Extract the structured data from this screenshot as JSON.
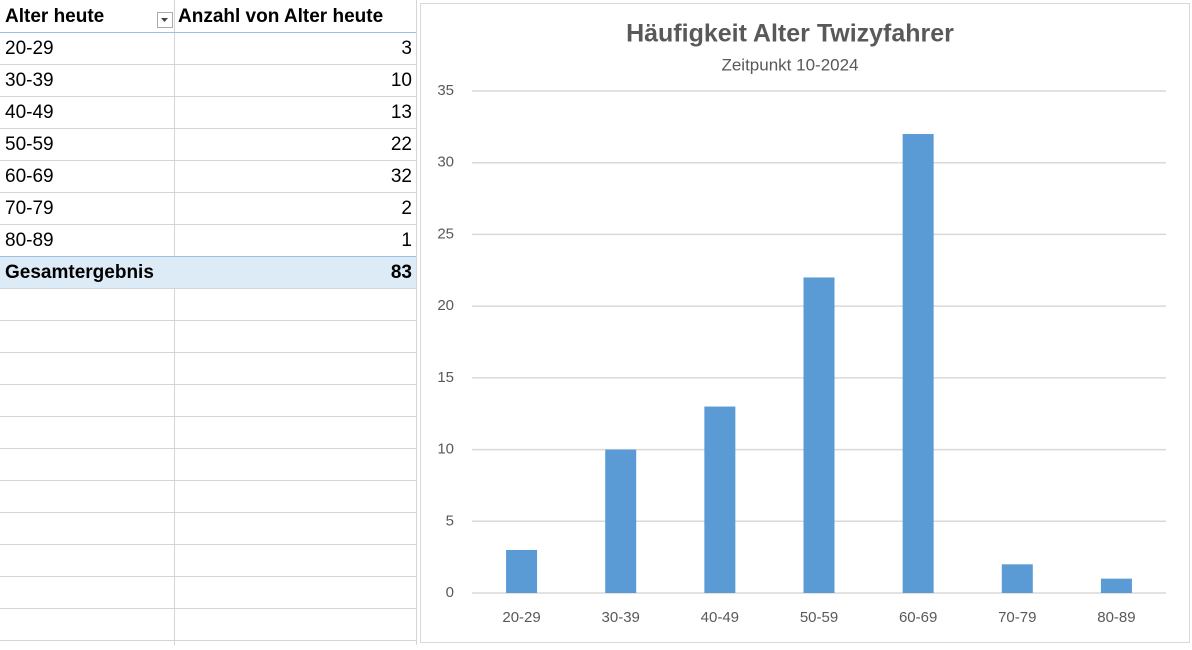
{
  "table": {
    "headers": [
      "Alter heute",
      "Anzahl von Alter heute"
    ],
    "total_label": "Gesamtergebnis",
    "total": "83"
  },
  "chart_data": {
    "type": "bar",
    "title": "Häufigkeit Alter Twizyfahrer",
    "subtitle": "Zeitpunkt 10-2024",
    "categories": [
      "20-29",
      "30-39",
      "40-49",
      "50-59",
      "60-69",
      "70-79",
      "80-89"
    ],
    "values": [
      3,
      10,
      13,
      22,
      32,
      2,
      1
    ],
    "color": "#5b9bd5",
    "ylim": [
      0,
      35
    ],
    "yticks": [
      0,
      5,
      10,
      15,
      20,
      25,
      30,
      35
    ],
    "grid": true
  }
}
